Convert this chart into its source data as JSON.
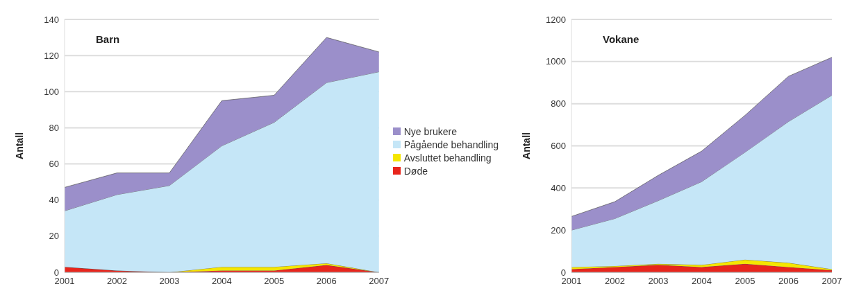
{
  "chart_data": [
    {
      "type": "area",
      "title": "Barn",
      "ylabel": "Antall",
      "stacked": true,
      "categories": [
        "2001",
        "2002",
        "2003",
        "2004",
        "2005",
        "2006",
        "2007"
      ],
      "ylim": [
        0,
        140
      ],
      "yticks": [
        0,
        20,
        40,
        60,
        80,
        100,
        120,
        140
      ],
      "grid": "y",
      "legend": "right",
      "series": [
        {
          "name": "Døde",
          "color": "#e8251c",
          "values": [
            3,
            1,
            0,
            1,
            1,
            4,
            0
          ]
        },
        {
          "name": "Avsluttet behandling",
          "color": "#f5e600",
          "values": [
            0,
            0,
            0,
            2,
            2,
            1,
            0
          ]
        },
        {
          "name": "Pågående behandling",
          "color": "#c5e6f7",
          "values": [
            31,
            42,
            48,
            67,
            80,
            100,
            111
          ]
        },
        {
          "name": "Nye brukere",
          "color": "#9b8fca",
          "values": [
            13,
            12,
            7,
            25,
            15,
            25,
            11
          ]
        }
      ]
    },
    {
      "type": "area",
      "title": "Vokane",
      "ylabel": "Antall",
      "stacked": true,
      "categories": [
        "2001",
        "2002",
        "2003",
        "2004",
        "2005",
        "2006",
        "2007"
      ],
      "ylim": [
        0,
        1200
      ],
      "yticks": [
        0,
        200,
        400,
        600,
        800,
        1000,
        1200
      ],
      "grid": "y",
      "series": [
        {
          "color": "#e8251c",
          "values": [
            15,
            25,
            35,
            25,
            40,
            25,
            10
          ]
        },
        {
          "color": "#f5e600",
          "values": [
            10,
            5,
            5,
            10,
            20,
            20,
            5
          ]
        },
        {
          "color": "#c5e6f7",
          "values": [
            175,
            225,
            300,
            395,
            510,
            670,
            825
          ]
        },
        {
          "color": "#9b8fca",
          "values": [
            65,
            80,
            120,
            145,
            175,
            215,
            180
          ]
        }
      ]
    }
  ]
}
